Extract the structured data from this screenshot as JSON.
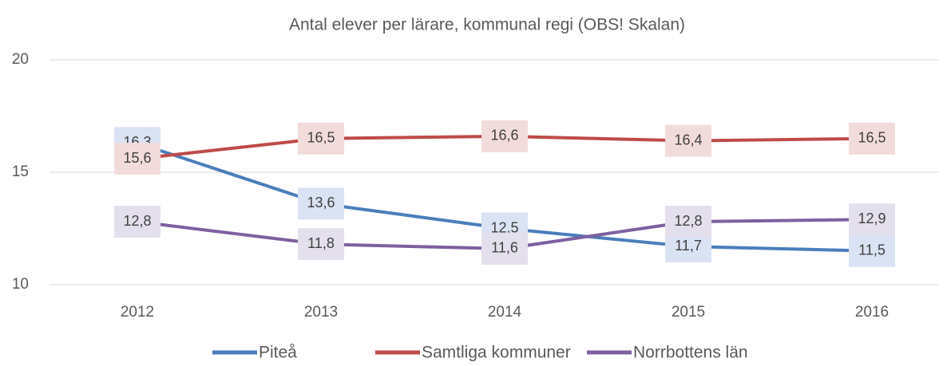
{
  "chart_data": {
    "type": "line",
    "title": "Antal elever per lärare, kommunal regi (OBS! Skalan)",
    "categories": [
      "2012",
      "2013",
      "2014",
      "2015",
      "2016"
    ],
    "series": [
      {
        "name": "Piteå",
        "color": "#4a7ebb",
        "label_bg": "#dae3f3",
        "values": [
          16.3,
          13.6,
          12.5,
          11.7,
          11.5
        ],
        "value_labels": [
          "16,3",
          "13,6",
          "12,5",
          "11,7",
          "11,5"
        ]
      },
      {
        "name": "Samtliga kommuner",
        "color": "#be4b48",
        "label_bg": "#f2dcdb",
        "values": [
          15.6,
          16.5,
          16.6,
          16.4,
          16.5
        ],
        "value_labels": [
          "15,6",
          "16,5",
          "16,6",
          "16,4",
          "16,5"
        ]
      },
      {
        "name": "Norrbottens län",
        "color": "#7d60a0",
        "label_bg": "#e4dfec",
        "values": [
          12.8,
          11.8,
          11.6,
          12.8,
          12.9
        ],
        "value_labels": [
          "12,8",
          "11,8",
          "11,6",
          "12,8",
          "12,9"
        ]
      }
    ],
    "ylim": [
      10,
      20
    ],
    "yticks": [
      10,
      15,
      20
    ],
    "grid": true,
    "legend": "bottom"
  }
}
